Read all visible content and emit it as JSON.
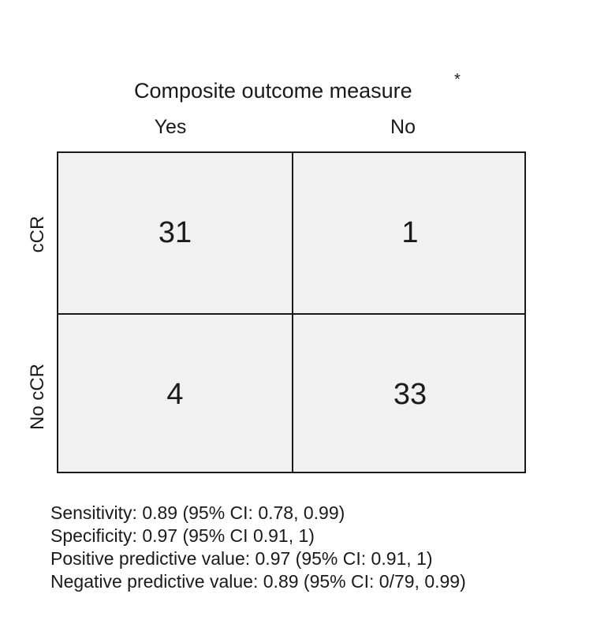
{
  "title": "Composite outcome measure",
  "title_marker": "*",
  "columns": [
    "Yes",
    "No"
  ],
  "rows": [
    "cCR",
    "No cCR"
  ],
  "cells": [
    [
      "31",
      "1"
    ],
    [
      "4",
      "33"
    ]
  ],
  "stats": [
    "Sensitivity: 0.89 (95% CI: 0.78, 0.99)",
    "Specificity: 0.97 (95% CI 0.91, 1)",
    "Positive predictive value: 0.97 (95% CI: 0.91, 1)",
    "Negative predictive value: 0.89 (95% CI: 0/79, 0.99)"
  ]
}
